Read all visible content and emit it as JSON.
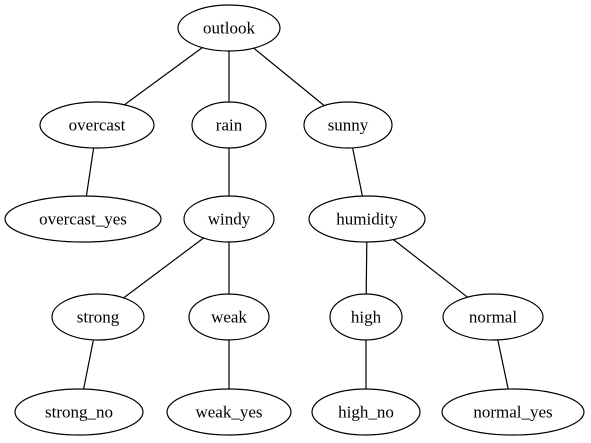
{
  "nodes": {
    "outlook": "outlook",
    "overcast": "overcast",
    "rain": "rain",
    "sunny": "sunny",
    "overcast_yes": "overcast_yes",
    "windy": "windy",
    "humidity": "humidity",
    "strong": "strong",
    "weak": "weak",
    "high": "high",
    "normal": "normal",
    "strong_no": "strong_no",
    "weak_yes": "weak_yes",
    "high_no": "high_no",
    "normal_yes": "normal_yes"
  },
  "edges": [
    [
      "outlook",
      "overcast"
    ],
    [
      "outlook",
      "rain"
    ],
    [
      "outlook",
      "sunny"
    ],
    [
      "overcast",
      "overcast_yes"
    ],
    [
      "rain",
      "windy"
    ],
    [
      "sunny",
      "humidity"
    ],
    [
      "windy",
      "strong"
    ],
    [
      "windy",
      "weak"
    ],
    [
      "humidity",
      "high"
    ],
    [
      "humidity",
      "normal"
    ],
    [
      "strong",
      "strong_no"
    ],
    [
      "weak",
      "weak_yes"
    ],
    [
      "high",
      "high_no"
    ],
    [
      "normal",
      "normal_yes"
    ]
  ]
}
